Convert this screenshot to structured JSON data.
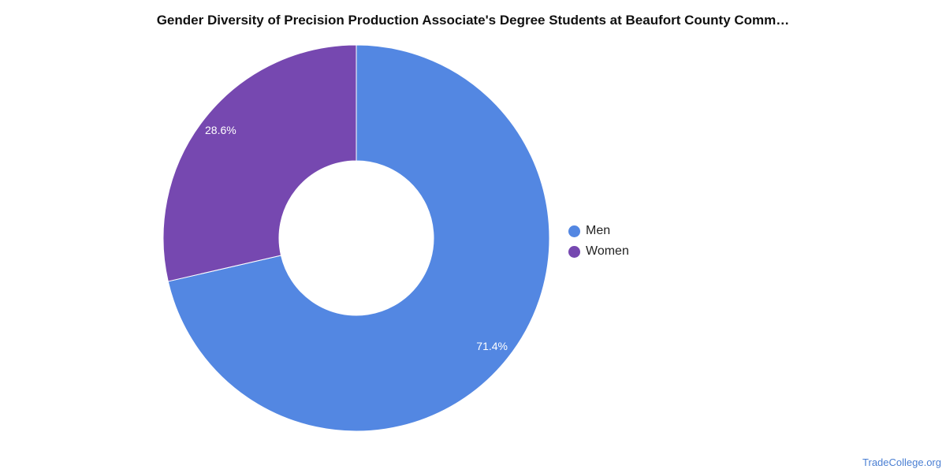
{
  "chart_data": {
    "type": "pie",
    "title": "Gender Diversity of Precision Production Associate's Degree Students at Beaufort County Comm…",
    "donut": true,
    "legend_position": "right",
    "slices": [
      {
        "label": "Men",
        "value": 71.4,
        "display": "71.4%",
        "color": "#5387e2"
      },
      {
        "label": "Women",
        "value": 28.6,
        "display": "28.6%",
        "color": "#7648b0"
      }
    ]
  },
  "watermark": "TradeCollege.org"
}
